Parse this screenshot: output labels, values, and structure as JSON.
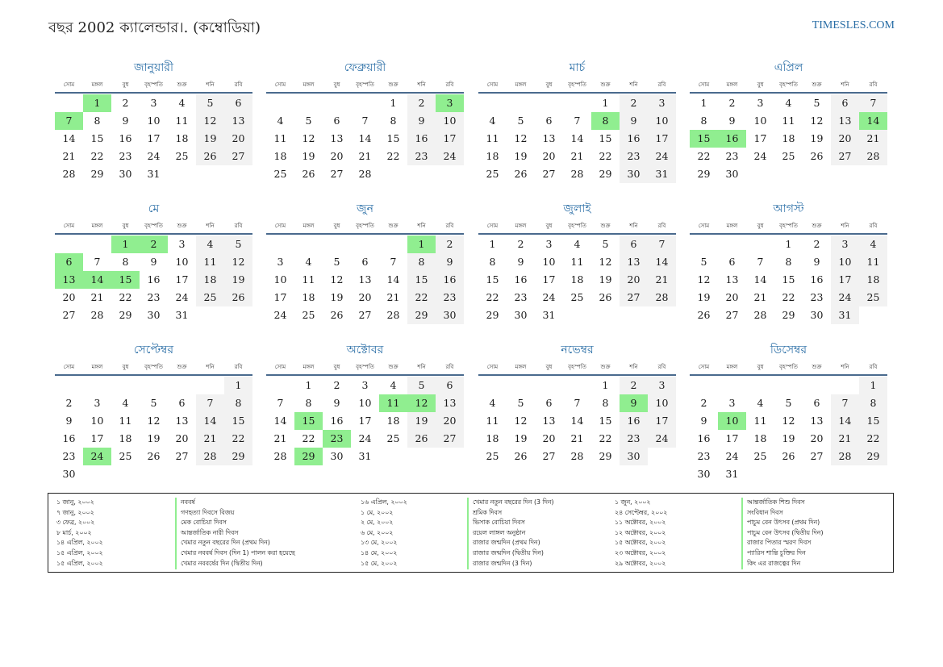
{
  "header": {
    "title": "বছর 2002 ক্যালেন্ডার।. (কম্বোডিয়া)",
    "site": "TIMESLES.COM"
  },
  "colors": {
    "accent": "#2a6ea6",
    "holiday": "#90ee90",
    "weekend": "#f2f2f2"
  },
  "dow": [
    "সোম",
    "মঙ্গল",
    "বুধ",
    "বৃহস্পতি",
    "শুক্র",
    "শনি",
    "রবি"
  ],
  "months": [
    {
      "name": "জানুয়ারী",
      "start": 1,
      "days": 31,
      "holidays": [
        1,
        7
      ]
    },
    {
      "name": "ফেব্রুয়ারী",
      "start": 4,
      "days": 28,
      "holidays": [
        3
      ]
    },
    {
      "name": "মার্চ",
      "start": 4,
      "days": 31,
      "holidays": [
        8
      ]
    },
    {
      "name": "এপ্রিল",
      "start": 0,
      "days": 30,
      "holidays": [
        14,
        15,
        16
      ]
    },
    {
      "name": "মে",
      "start": 2,
      "days": 31,
      "holidays": [
        1,
        2,
        6,
        13,
        14,
        15
      ]
    },
    {
      "name": "জুন",
      "start": 5,
      "days": 30,
      "holidays": [
        1
      ]
    },
    {
      "name": "জুলাই",
      "start": 0,
      "days": 31,
      "holidays": []
    },
    {
      "name": "আগস্ট",
      "start": 3,
      "days": 31,
      "holidays": []
    },
    {
      "name": "সেপ্টেম্বর",
      "start": 6,
      "days": 30,
      "holidays": [
        24
      ]
    },
    {
      "name": "অক্টোবর",
      "start": 1,
      "days": 31,
      "holidays": [
        11,
        12,
        15,
        23,
        29
      ]
    },
    {
      "name": "নভেম্বর",
      "start": 4,
      "days": 30,
      "holidays": [
        9
      ]
    },
    {
      "name": "ডিসেম্বর",
      "start": 6,
      "days": 31,
      "holidays": [
        10
      ]
    }
  ],
  "legend": [
    {
      "date": "১ জানু, ২০০২",
      "name": "নববর্ষ"
    },
    {
      "date": "৭ জানু, ২০০২",
      "name": "গণহত্যা দিবসে বিজয়"
    },
    {
      "date": "৩ ফেব্র, ২০০২",
      "name": "মেক বোচিয়া দিবস"
    },
    {
      "date": "৮ মার্চ, ২০০২",
      "name": "আন্তর্জাতিক নারী দিবস"
    },
    {
      "date": "১৪ এপ্রিল, ২০০২",
      "name": "খেমার নতুন বছরের দিন (প্রথম দিন)"
    },
    {
      "date": "১৫ এপ্রিল, ২০০২",
      "name": "খেমার নববর্ষ দিবস (দিন 1) পালন করা হয়েছে"
    },
    {
      "date": "১৫ এপ্রিল, ২০০২",
      "name": "খেমার নববর্ষের দিন (দ্বিতীয় দিন)"
    },
    {
      "date": "১৬ এপ্রিল, ২০০২",
      "name": "খেমার নতুন বছরের দিন (3 দিন)"
    },
    {
      "date": "১ মে, ২০০২",
      "name": "শ্রমিক দিবস"
    },
    {
      "date": "২ মে, ২০০২",
      "name": "ভিসাক বোচিয়া দিবস"
    },
    {
      "date": "৬ মে, ২০০২",
      "name": "রয়েল লাঙ্গল অনুষ্ঠান"
    },
    {
      "date": "১৩ মে, ২০০২",
      "name": "রাজার জন্মদিন (প্রথম দিন)"
    },
    {
      "date": "১৪ মে, ২০০২",
      "name": "রাজার জন্মদিন (দ্বিতীয় দিন)"
    },
    {
      "date": "১৫ মে, ২০০২",
      "name": "রাজার জন্মদিন (3 দিন)"
    },
    {
      "date": "১ জুন, ২০০২",
      "name": "আন্তর্জাতিক শিশু দিবস"
    },
    {
      "date": "২৪ সেপ্টেম্বর, ২০০২",
      "name": "সংবিধান দিবস"
    },
    {
      "date": "১১ অক্টোবর, ২০০২",
      "name": "পাচুম বেন উৎসব (প্রথম দিন)"
    },
    {
      "date": "১২ অক্টোবর, ২০০২",
      "name": "পাচুম বেন উৎসব (দ্বিতীয় দিন)"
    },
    {
      "date": "১৫ অক্টোবর, ২০০২",
      "name": "রাজার পিতার স্মরণ দিবস"
    },
    {
      "date": "২৩ অক্টোবর, ২০০২",
      "name": "প্যারিস শান্তি চুক্তির দিন"
    },
    {
      "date": "২৯ অক্টোবর, ২০০২",
      "name": "কিং এর রাজত্বের দিন"
    }
  ]
}
